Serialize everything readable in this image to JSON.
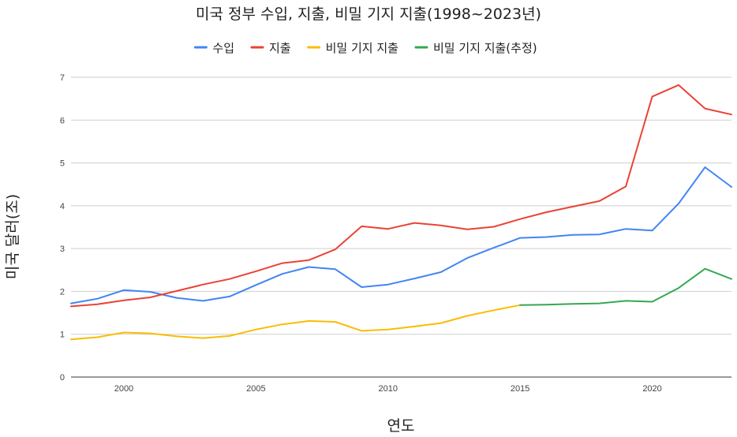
{
  "chart_data": {
    "type": "line",
    "title": "미국 정부 수입, 지출, 비밀 기지 지출(1998~2023년)",
    "xlabel": "연도",
    "ylabel": "미국 달러(조)",
    "xlim": [
      1998,
      2023
    ],
    "ylim": [
      0,
      7
    ],
    "x_ticks": [
      2000,
      2005,
      2010,
      2015,
      2020
    ],
    "y_ticks": [
      0,
      1,
      2,
      3,
      4,
      5,
      6,
      7
    ],
    "grid": true,
    "legend_position": "top",
    "series": [
      {
        "name": "수입",
        "color": "#4285F4",
        "x": [
          1998,
          1999,
          2000,
          2001,
          2002,
          2003,
          2004,
          2005,
          2006,
          2007,
          2008,
          2009,
          2010,
          2011,
          2012,
          2013,
          2014,
          2015,
          2016,
          2017,
          2018,
          2019,
          2020,
          2021,
          2022,
          2023
        ],
        "values": [
          1.72,
          1.83,
          2.03,
          1.99,
          1.85,
          1.78,
          1.88,
          2.15,
          2.41,
          2.57,
          2.52,
          2.1,
          2.16,
          2.3,
          2.45,
          2.78,
          3.02,
          3.25,
          3.27,
          3.32,
          3.33,
          3.46,
          3.42,
          4.05,
          4.9,
          4.44
        ]
      },
      {
        "name": "지출",
        "color": "#EA4335",
        "x": [
          1998,
          1999,
          2000,
          2001,
          2002,
          2003,
          2004,
          2005,
          2006,
          2007,
          2008,
          2009,
          2010,
          2011,
          2012,
          2013,
          2014,
          2015,
          2016,
          2017,
          2018,
          2019,
          2020,
          2021,
          2022,
          2023
        ],
        "values": [
          1.65,
          1.7,
          1.79,
          1.86,
          2.01,
          2.16,
          2.29,
          2.47,
          2.66,
          2.73,
          2.98,
          3.52,
          3.46,
          3.6,
          3.54,
          3.45,
          3.51,
          3.69,
          3.85,
          3.98,
          4.11,
          4.45,
          6.55,
          6.82,
          6.27,
          6.13
        ]
      },
      {
        "name": "비밀 기지 지출",
        "color": "#FBBC04",
        "x": [
          1998,
          1999,
          2000,
          2001,
          2002,
          2003,
          2004,
          2005,
          2006,
          2007,
          2008,
          2009,
          2010,
          2011,
          2012,
          2013,
          2014,
          2015
        ],
        "values": [
          0.88,
          0.93,
          1.04,
          1.02,
          0.95,
          0.91,
          0.96,
          1.11,
          1.23,
          1.31,
          1.29,
          1.08,
          1.11,
          1.18,
          1.26,
          1.43,
          1.56,
          1.68
        ]
      },
      {
        "name": "비밀 기지 지출(추정)",
        "color": "#34A853",
        "x": [
          2015,
          2016,
          2017,
          2018,
          2019,
          2020,
          2021,
          2022,
          2023
        ],
        "values": [
          1.68,
          1.69,
          1.71,
          1.72,
          1.78,
          1.76,
          2.08,
          2.53,
          2.29
        ]
      }
    ]
  }
}
